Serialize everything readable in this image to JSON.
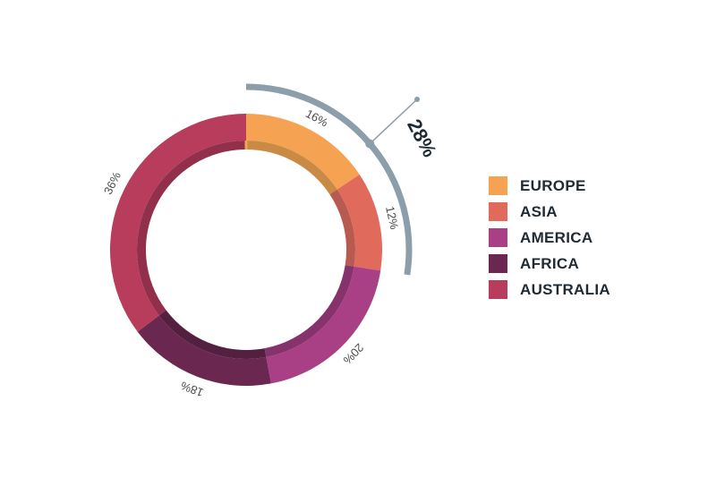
{
  "chart_data": {
    "type": "pie",
    "title": "",
    "series": [
      {
        "name": "EUROPE",
        "value": 16,
        "label": "16%",
        "color": "#f5a352",
        "inner_color": "#c98a45"
      },
      {
        "name": "ASIA",
        "value": 12,
        "label": "12%",
        "color": "#e06b5c",
        "inner_color": "#b85a50"
      },
      {
        "name": "AMERICA",
        "value": 20,
        "label": "20%",
        "color": "#a93f84",
        "inner_color": "#86336b"
      },
      {
        "name": "AFRICA",
        "value": 18,
        "label": "18%",
        "color": "#6a2851",
        "inner_color": "#532040"
      },
      {
        "name": "AUSTRALIA",
        "value": 36,
        "label": "36%",
        "color": "#b83c5c",
        "inner_color": "#922f4a"
      }
    ],
    "highlight": {
      "label": "28%",
      "covers": [
        "EUROPE",
        "ASIA"
      ],
      "color": "#8c9ea9"
    },
    "legend_position": "right"
  }
}
